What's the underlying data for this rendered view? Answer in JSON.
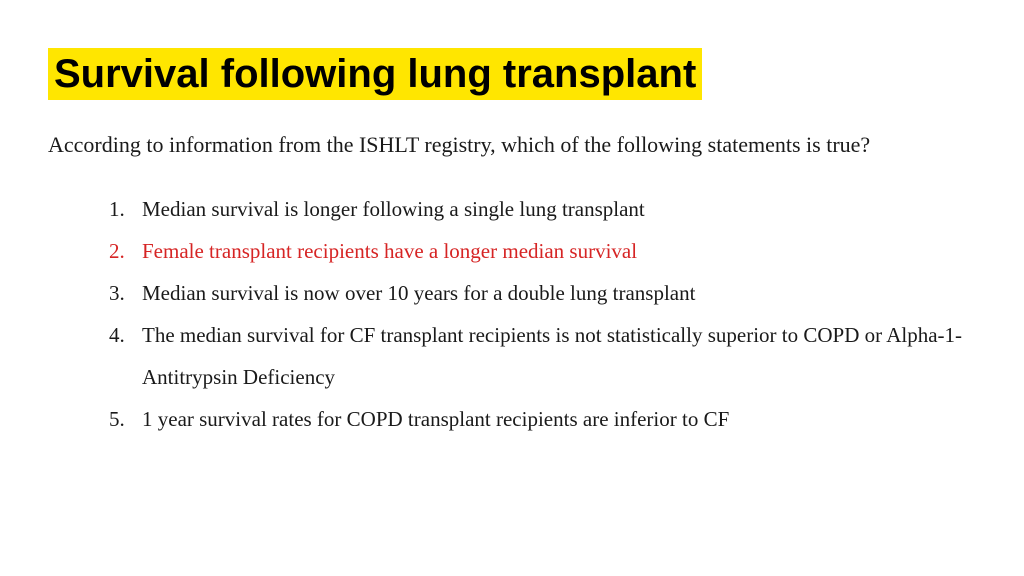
{
  "title": {
    "text": "Survival following lung transplant",
    "highlight_color": "#ffe600",
    "text_color": "#000000",
    "fontsize_pt": 30,
    "font_family": "Arial Narrow",
    "font_weight": 700
  },
  "question": {
    "text": "According to information from the ISHLT registry, which of the following statements is true?",
    "text_color": "#1a1a1a",
    "fontsize_pt": 17
  },
  "options": {
    "fontsize_pt": 16,
    "default_color": "#1a1a1a",
    "highlight_color": "#d62424",
    "items": [
      {
        "text": "Median survival is longer following a single lung transplant",
        "highlighted": false
      },
      {
        "text": "Female transplant recipients have a longer median survival",
        "highlighted": true
      },
      {
        "text": "Median survival is now over 10 years for a double lung transplant",
        "highlighted": false
      },
      {
        "text": "The median survival for CF transplant recipients is not statistically superior to COPD or Alpha-1-Antitrypsin Deficiency",
        "highlighted": false
      },
      {
        "text": "1 year survival rates for COPD transplant recipients are inferior to CF",
        "highlighted": false
      }
    ]
  },
  "background_color": "#ffffff"
}
